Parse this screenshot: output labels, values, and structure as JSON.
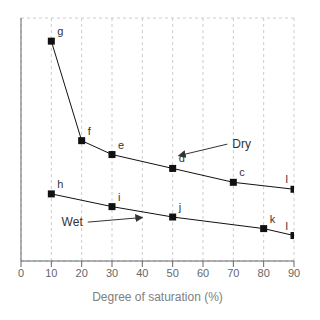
{
  "chart_data": {
    "type": "line",
    "xlabel": "Degree of saturation (%)",
    "xlim": [
      0,
      90
    ],
    "xticks": [
      0,
      10,
      20,
      30,
      40,
      50,
      60,
      70,
      80,
      90
    ],
    "ylim": [
      0,
      10.5
    ],
    "yticks": [
      0,
      1,
      2,
      3,
      4,
      5,
      6,
      7,
      8,
      9,
      10
    ],
    "grid": true,
    "tick_labels": "x",
    "marker": "square",
    "color": "#111111",
    "series": [
      {
        "x": [
          10,
          20,
          30,
          50,
          70,
          90
        ],
        "values": [
          9.5,
          5.2,
          4.6,
          4.0,
          3.4,
          3.1
        ],
        "point_labels": [
          "g",
          "f",
          "e",
          "d",
          "c",
          "l"
        ]
      },
      {
        "x": [
          10,
          30,
          50,
          80,
          90
        ],
        "values": [
          2.9,
          2.35,
          1.9,
          1.4,
          1.1
        ],
        "point_labels": [
          "h",
          "i",
          "j",
          "k",
          "l"
        ]
      }
    ],
    "annotations": [
      {
        "text": "Dry",
        "x": 68,
        "y": 5.05,
        "arrow_x": 52,
        "arrow_y": 4.55
      },
      {
        "text": "Wet",
        "x": 22,
        "y": 1.68,
        "arrow_x": 40,
        "arrow_y": 1.88
      }
    ]
  }
}
